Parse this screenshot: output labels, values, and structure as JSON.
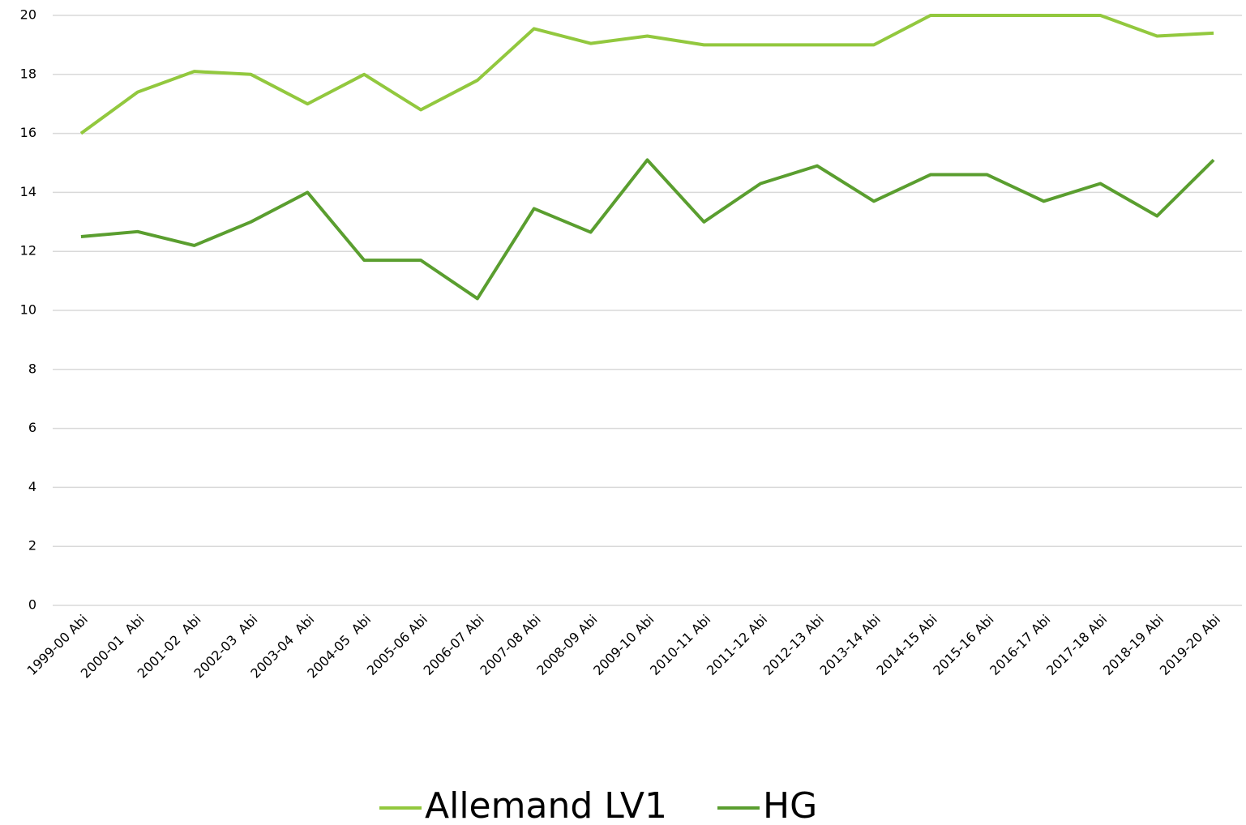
{
  "chart_data": {
    "type": "line",
    "categories": [
      "1999-00 Abi",
      "2000-01  Abi",
      "2001-02  Abi",
      "2002-03  Abi",
      "2003-04  Abi",
      "2004-05  Abi",
      "2005-06 Abi",
      "2006-07 Abi",
      "2007-08 Abi",
      "2008-09 Abi",
      "2009-10 Abi",
      "2010-11 Abi",
      "2011-12 Abi",
      "2012-13 Abi",
      "2013-14 Abi",
      "2014-15 Abi",
      "2015-16 Abi",
      "2016-17 Abi",
      "2017-18 Abi",
      "2018-19 Abi",
      "2019-20 Abi"
    ],
    "series": [
      {
        "name": "Allemand LV1",
        "color": "#92c83e",
        "values": [
          16,
          17.4,
          18.1,
          18,
          17,
          18,
          16.8,
          17.8,
          19.55,
          19.05,
          19.3,
          19,
          19,
          19,
          19,
          20,
          20,
          20,
          20,
          19.3,
          19.4
        ]
      },
      {
        "name": "HG",
        "color": "#5a9e2f",
        "values": [
          12.5,
          12.67,
          12.2,
          13,
          14,
          11.7,
          11.7,
          10.4,
          13.45,
          12.65,
          15.1,
          13,
          14.3,
          14.9,
          13.7,
          14.6,
          14.6,
          13.7,
          14.3,
          13.2,
          15.1
        ]
      }
    ],
    "ylim": [
      0,
      20
    ],
    "yticks": [
      0,
      2,
      4,
      6,
      8,
      10,
      12,
      14,
      16,
      18,
      20
    ],
    "grid": true,
    "legend": "bottom"
  }
}
